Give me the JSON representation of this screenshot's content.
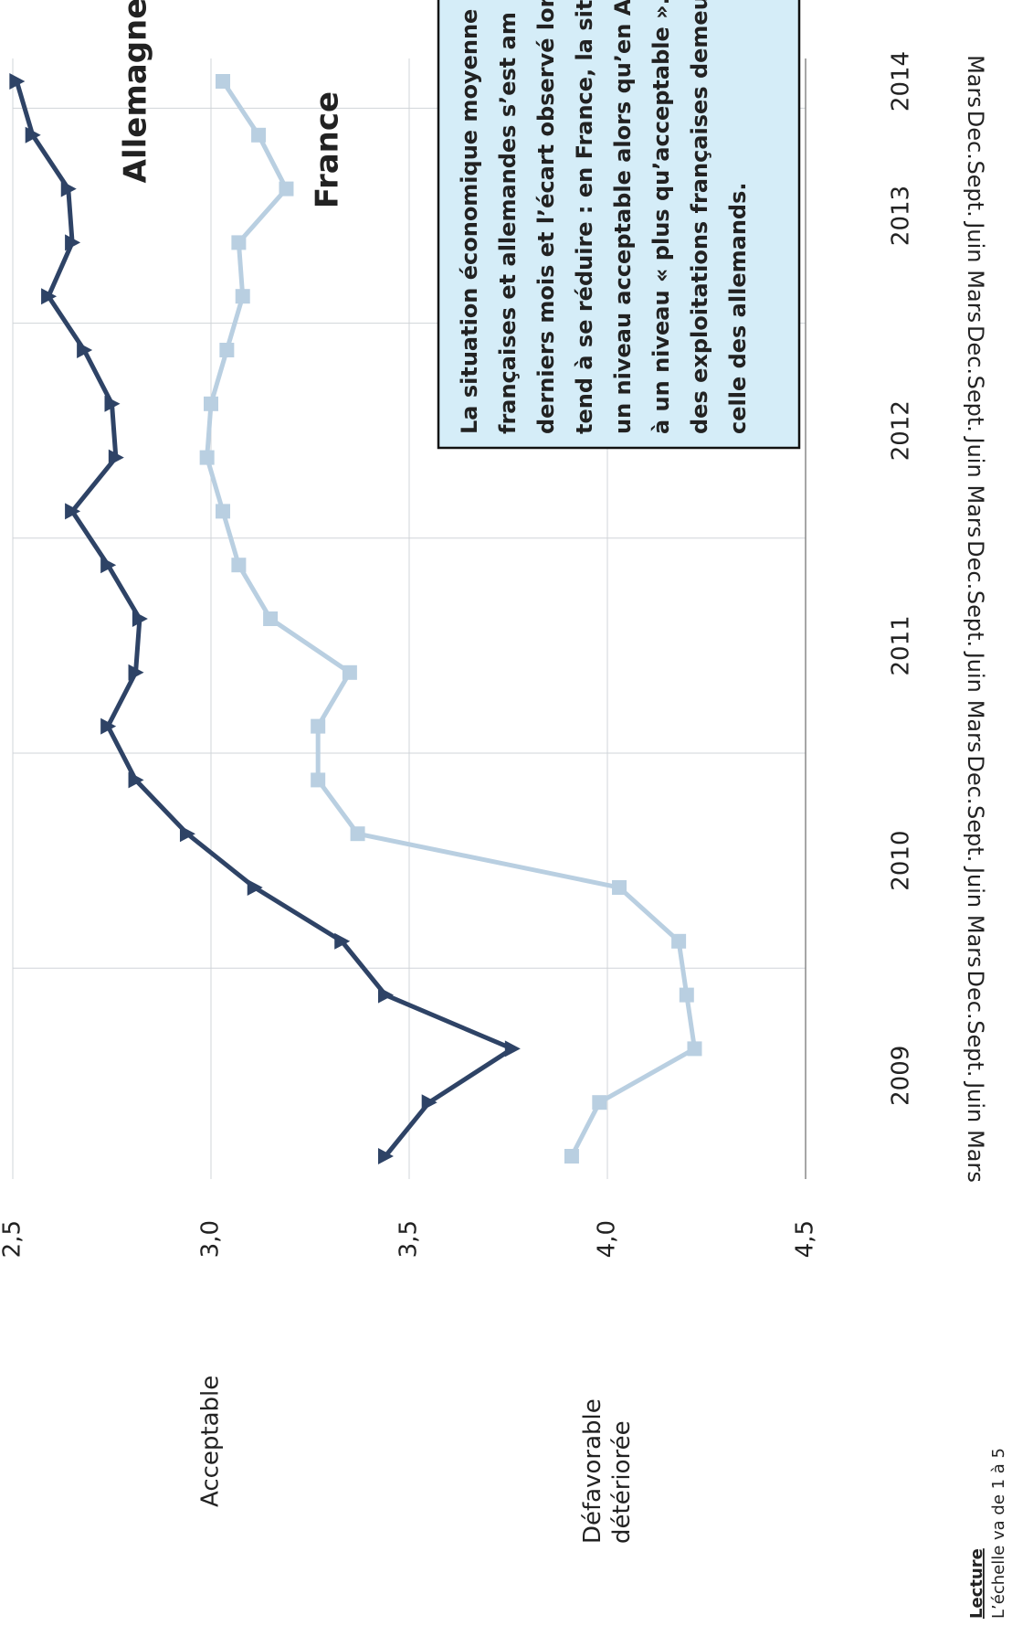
{
  "chart_data": {
    "type": "line",
    "categories": [
      "Mars",
      "Juin",
      "Sept.",
      "Dec.",
      "Mars",
      "Juin",
      "Sept.",
      "Dec.",
      "Mars",
      "Juin",
      "Sept.",
      "Dec.",
      "Mars",
      "Juin",
      "Sept.",
      "Dec.",
      "Mars",
      "Juin",
      "Sept.",
      "Dec.",
      "Mars"
    ],
    "years": [
      "2009",
      "2010",
      "2011",
      "2012",
      "2013",
      "2014"
    ],
    "series": [
      {
        "name": "Allemagne",
        "color": "#2e4366",
        "marker": "triangle",
        "values": [
          3.44,
          3.55,
          3.76,
          3.44,
          3.33,
          3.11,
          2.94,
          2.81,
          2.74,
          2.81,
          2.82,
          2.74,
          2.65,
          2.76,
          2.75,
          2.68,
          2.59,
          2.65,
          2.64,
          2.55,
          2.51
        ]
      },
      {
        "name": "France",
        "color": "#b9cfe1",
        "marker": "square",
        "values": [
          3.91,
          3.98,
          4.22,
          4.2,
          4.18,
          4.03,
          3.37,
          3.27,
          3.27,
          3.35,
          3.15,
          3.07,
          3.03,
          2.99,
          3.0,
          3.04,
          3.08,
          3.07,
          3.19,
          3.12,
          3.03
        ]
      }
    ],
    "ylim": [
      2.5,
      4.5
    ],
    "y_inverted": true,
    "yticks": [
      {
        "value": 2.5,
        "label": "2,5"
      },
      {
        "value": 3,
        "label": "3,0"
      },
      {
        "value": 3.5,
        "label": "3,5"
      },
      {
        "value": 4,
        "label": "4,0"
      },
      {
        "value": 4.5,
        "label": "4,5"
      }
    ],
    "grid": true,
    "y_qualitative_labels": [
      {
        "value": 3,
        "label": "Acceptable"
      },
      {
        "value": 4,
        "label": "Défavorable détériorée"
      }
    ],
    "annotation": [
      "La situation économique moyenne",
      "françaises et allemandes s’est am",
      "derniers mois et l’écart observé lors",
      "tend à se réduire : en France, la situa",
      "un niveau acceptable alors qu’en Alle",
      "à un niveau « plus qu’acceptable ». La",
      "des exploitations françaises demeure",
      "celle des allemands."
    ],
    "note_title": "Lecture",
    "note": "L’échelle va de 1 à 5"
  }
}
